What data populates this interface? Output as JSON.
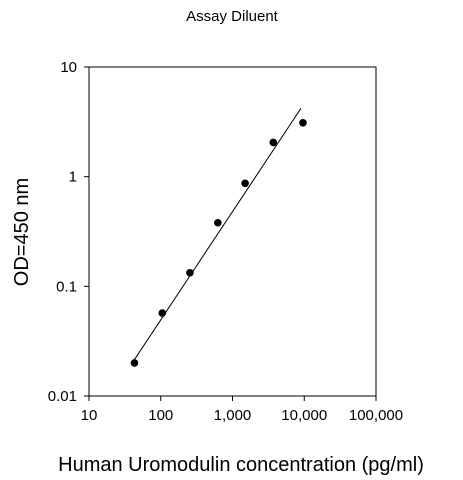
{
  "chart_data": {
    "type": "scatter",
    "title": "Assay Diluent",
    "xlabel": "Human Uromodulin concentration (pg/ml)",
    "ylabel": "OD=450 nm",
    "x_scale": "log",
    "y_scale": "log",
    "xlim": [
      10,
      100000
    ],
    "ylim": [
      0.01,
      10
    ],
    "x_ticks": [
      10,
      100,
      1000,
      10000,
      100000
    ],
    "x_tick_labels": [
      "10",
      "100",
      "1,000",
      "10,000",
      "100,000"
    ],
    "y_ticks": [
      0.01,
      0.1,
      1,
      10
    ],
    "y_tick_labels": [
      "0.01",
      "0.1",
      "1",
      "10"
    ],
    "grid": false,
    "series": [
      {
        "points": [
          {
            "x": 43,
            "y": 0.02
          },
          {
            "x": 105,
            "y": 0.057
          },
          {
            "x": 255,
            "y": 0.133
          },
          {
            "x": 625,
            "y": 0.38
          },
          {
            "x": 1500,
            "y": 0.87
          },
          {
            "x": 3700,
            "y": 2.05
          },
          {
            "x": 9600,
            "y": 3.1
          }
        ],
        "color": "#000000"
      }
    ],
    "fit_line": {
      "x": [
        42,
        9000
      ],
      "y": [
        0.021,
        4.2
      ],
      "color": "#000000"
    }
  }
}
